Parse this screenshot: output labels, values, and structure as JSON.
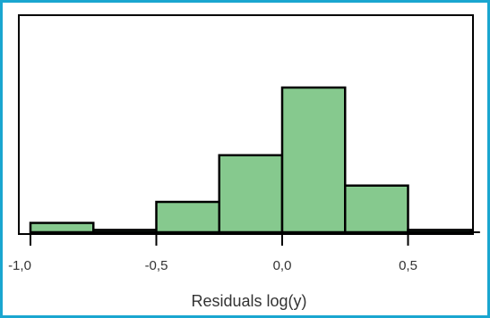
{
  "chart_data": {
    "type": "histogram",
    "xlabel": "Residuals log(y)",
    "xlim": [
      -1.0,
      0.8
    ],
    "ylim": [
      0,
      1
    ],
    "x_ticks": [
      -1.0,
      -0.5,
      0.0,
      0.5
    ],
    "x_tick_labels": [
      "-1,0",
      "-0,5",
      "0,0",
      "0,5"
    ],
    "y_tick_labels": [],
    "grid": false,
    "legend": "none",
    "bar_color": "#86c98e",
    "bar_edge_color": "#000000",
    "frame_color": "#1aa6d0",
    "bins": [
      {
        "x0": -1.0,
        "x1": -0.75,
        "value": 0.0645
      },
      {
        "x0": -0.75,
        "x1": -0.5,
        "value": 0.0161
      },
      {
        "x0": -0.5,
        "x1": -0.25,
        "value": 0.2097
      },
      {
        "x0": -0.25,
        "x1": 0.0,
        "value": 0.5323
      },
      {
        "x0": 0.0,
        "x1": 0.25,
        "value": 1.0
      },
      {
        "x0": 0.25,
        "x1": 0.5,
        "value": 0.3226
      },
      {
        "x0": 0.5,
        "x1": 0.75,
        "value": 0.0161
      }
    ]
  }
}
